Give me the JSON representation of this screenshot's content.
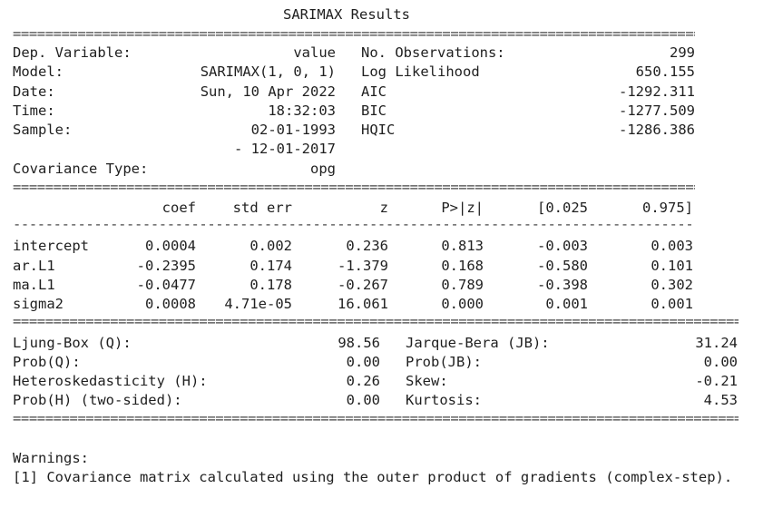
{
  "title": "SARIMAX Results",
  "header": {
    "left": [
      {
        "label": "Dep. Variable:",
        "value": "value"
      },
      {
        "label": "Model:",
        "value": "SARIMAX(1, 0, 1)"
      },
      {
        "label": "Date:",
        "value": "Sun, 10 Apr 2022"
      },
      {
        "label": "Time:",
        "value": "18:32:03"
      },
      {
        "label": "Sample:",
        "value": "02-01-1993"
      },
      {
        "label": "",
        "value": "- 12-01-2017"
      },
      {
        "label": "Covariance Type:",
        "value": "opg"
      }
    ],
    "right": [
      {
        "label": "No. Observations:",
        "value": "299"
      },
      {
        "label": "Log Likelihood",
        "value": "650.155"
      },
      {
        "label": "AIC",
        "value": "-1292.311"
      },
      {
        "label": "BIC",
        "value": "-1277.509"
      },
      {
        "label": "HQIC",
        "value": "-1286.386"
      }
    ]
  },
  "coef_table": {
    "columns": [
      "coef",
      "std err",
      "z",
      "P>|z|",
      "[0.025",
      "0.975]"
    ],
    "rows": [
      {
        "name": "intercept",
        "cells": [
          "0.0004",
          "0.002",
          "0.236",
          "0.813",
          "-0.003",
          "0.003"
        ]
      },
      {
        "name": "ar.L1",
        "cells": [
          "-0.2395",
          "0.174",
          "-1.379",
          "0.168",
          "-0.580",
          "0.101"
        ]
      },
      {
        "name": "ma.L1",
        "cells": [
          "-0.0477",
          "0.178",
          "-0.267",
          "0.789",
          "-0.398",
          "0.302"
        ]
      },
      {
        "name": "sigma2",
        "cells": [
          "0.0008",
          "4.71e-05",
          "16.061",
          "0.000",
          "0.001",
          "0.001"
        ]
      }
    ]
  },
  "diagnostics": {
    "left": [
      {
        "label": "Ljung-Box (Q):",
        "value": "98.56"
      },
      {
        "label": "Prob(Q):",
        "value": "0.00"
      },
      {
        "label": "Heteroskedasticity (H):",
        "value": "0.26"
      },
      {
        "label": "Prob(H) (two-sided):",
        "value": "0.00"
      }
    ],
    "right": [
      {
        "label": "Jarque-Bera (JB):",
        "value": "31.24"
      },
      {
        "label": "Prob(JB):",
        "value": "0.00"
      },
      {
        "label": "Skew:",
        "value": "-0.21"
      },
      {
        "label": "Kurtosis:",
        "value": "4.53"
      }
    ]
  },
  "warnings": {
    "heading": "Warnings:",
    "items": [
      "[1] Covariance matrix calculated using the outer product of gradients (complex-step)."
    ]
  }
}
